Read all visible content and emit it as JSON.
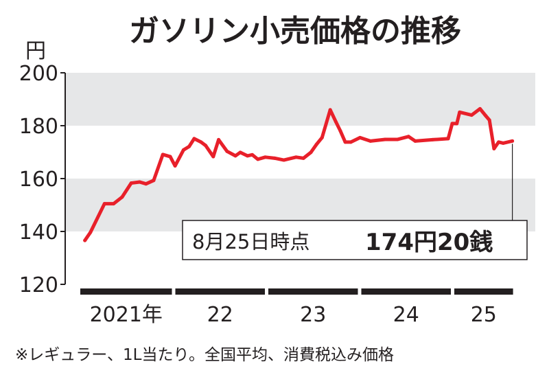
{
  "chart_data": {
    "type": "line",
    "title": "ガソリン小売価格の推移",
    "ylabel": "円",
    "ylim": [
      120,
      200
    ],
    "yticks": [
      "200",
      "180",
      "160",
      "140",
      "120"
    ],
    "ytick_values": [
      200,
      180,
      160,
      140,
      120
    ],
    "grid_bands": [
      [
        180,
        200
      ],
      [
        140,
        160
      ]
    ],
    "xticks": [
      "2021年",
      "22",
      "23",
      "24",
      "25"
    ],
    "xtick_years": [
      2021,
      2022,
      2023,
      2024,
      2025
    ],
    "series": [
      {
        "color": "#e8202a",
        "points": [
          [
            "2021-01-19",
            136.6
          ],
          [
            "2021-02-10",
            139.7
          ],
          [
            "2021-04-06",
            150.5
          ],
          [
            "2021-05-12",
            150.5
          ],
          [
            "2021-06-14",
            153.0
          ],
          [
            "2021-07-20",
            158.3
          ],
          [
            "2021-08-22",
            158.7
          ],
          [
            "2021-09-16",
            158.0
          ],
          [
            "2021-10-16",
            159.3
          ],
          [
            "2021-11-21",
            169.1
          ],
          [
            "2021-12-20",
            168.3
          ],
          [
            "2022-01-08",
            164.8
          ],
          [
            "2022-02-10",
            170.8
          ],
          [
            "2022-03-04",
            172.1
          ],
          [
            "2022-03-24",
            175.1
          ],
          [
            "2022-04-20",
            173.8
          ],
          [
            "2022-05-08",
            172.5
          ],
          [
            "2022-06-07",
            168.3
          ],
          [
            "2022-06-28",
            174.7
          ],
          [
            "2022-07-31",
            170.3
          ],
          [
            "2022-09-02",
            168.6
          ],
          [
            "2022-09-21",
            169.9
          ],
          [
            "2022-10-19",
            168.6
          ],
          [
            "2022-11-07",
            169.0
          ],
          [
            "2022-11-29",
            167.3
          ],
          [
            "2022-12-28",
            168.1
          ],
          [
            "2023-02-03",
            167.7
          ],
          [
            "2023-03-11",
            167.0
          ],
          [
            "2023-04-28",
            168.1
          ],
          [
            "2023-05-27",
            167.7
          ],
          [
            "2023-06-25",
            169.9
          ],
          [
            "2023-07-17",
            172.9
          ],
          [
            "2023-08-08",
            175.5
          ],
          [
            "2023-09-09",
            186.0
          ],
          [
            "2023-10-01",
            181.5
          ],
          [
            "2023-10-19",
            178.0
          ],
          [
            "2023-11-07",
            173.8
          ],
          [
            "2023-11-29",
            173.8
          ],
          [
            "2024-01-04",
            175.5
          ],
          [
            "2024-02-14",
            174.2
          ],
          [
            "2024-04-12",
            174.8
          ],
          [
            "2024-05-30",
            174.8
          ],
          [
            "2024-07-13",
            175.9
          ],
          [
            "2024-08-08",
            174.2
          ],
          [
            "2024-10-16",
            174.7
          ],
          [
            "2024-12-16",
            175.1
          ],
          [
            "2025-01-01",
            180.8
          ],
          [
            "2025-01-19",
            180.8
          ],
          [
            "2025-01-30",
            185.1
          ],
          [
            "2025-03-18",
            184.0
          ],
          [
            "2025-04-20",
            186.4
          ],
          [
            "2025-05-12",
            183.8
          ],
          [
            "2025-05-27",
            182.1
          ],
          [
            "2025-06-14",
            171.3
          ],
          [
            "2025-07-02",
            173.8
          ],
          [
            "2025-07-20",
            173.4
          ],
          [
            "2025-08-25",
            174.2
          ]
        ]
      }
    ],
    "annotation": {
      "date_label": "8月25日時点",
      "value_label": "174円20銭"
    },
    "footnote": "※レギュラー、1L当たり。全国平均、消費税込み価格",
    "band_color": "#e6e7e8"
  }
}
